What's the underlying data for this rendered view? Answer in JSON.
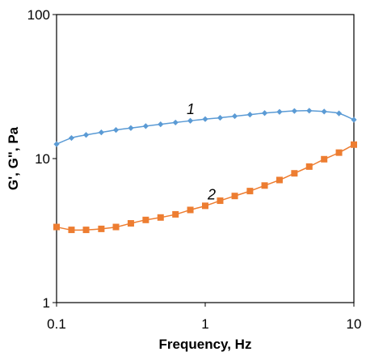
{
  "chart_data": {
    "type": "line",
    "title": "",
    "xlabel": "Frequency, Hz",
    "ylabel": "G', G\", Pa",
    "xscale": "log",
    "yscale": "log",
    "xlim": [
      0.1,
      10
    ],
    "ylim": [
      1,
      100
    ],
    "x_ticks": [
      "0.1",
      "1",
      "10"
    ],
    "y_ticks": [
      "1",
      "10",
      "100"
    ],
    "grid": false,
    "legend": "none",
    "series": [
      {
        "tag": "1",
        "color": "#5b9bd5",
        "marker": "diamond",
        "x": [
          0.1,
          0.126,
          0.158,
          0.2,
          0.251,
          0.316,
          0.398,
          0.501,
          0.631,
          0.794,
          1.0,
          1.26,
          1.58,
          2.0,
          2.51,
          3.16,
          3.98,
          5.01,
          6.31,
          7.94,
          10.0
        ],
        "values": [
          12.6,
          13.9,
          14.6,
          15.2,
          15.8,
          16.3,
          16.8,
          17.3,
          17.8,
          18.3,
          18.8,
          19.2,
          19.7,
          20.2,
          20.7,
          21.1,
          21.4,
          21.5,
          21.2,
          20.6,
          18.6
        ]
      },
      {
        "tag": "2",
        "color": "#ed7d31",
        "marker": "square",
        "x": [
          0.1,
          0.126,
          0.158,
          0.2,
          0.251,
          0.316,
          0.398,
          0.501,
          0.631,
          0.794,
          1.0,
          1.26,
          1.58,
          2.0,
          2.51,
          3.16,
          3.98,
          5.01,
          6.31,
          7.94,
          10.0
        ],
        "values": [
          3.35,
          3.2,
          3.2,
          3.25,
          3.35,
          3.55,
          3.75,
          3.9,
          4.1,
          4.4,
          4.7,
          5.1,
          5.5,
          5.95,
          6.5,
          7.1,
          7.9,
          8.8,
          9.9,
          11.0,
          12.5
        ]
      }
    ]
  }
}
